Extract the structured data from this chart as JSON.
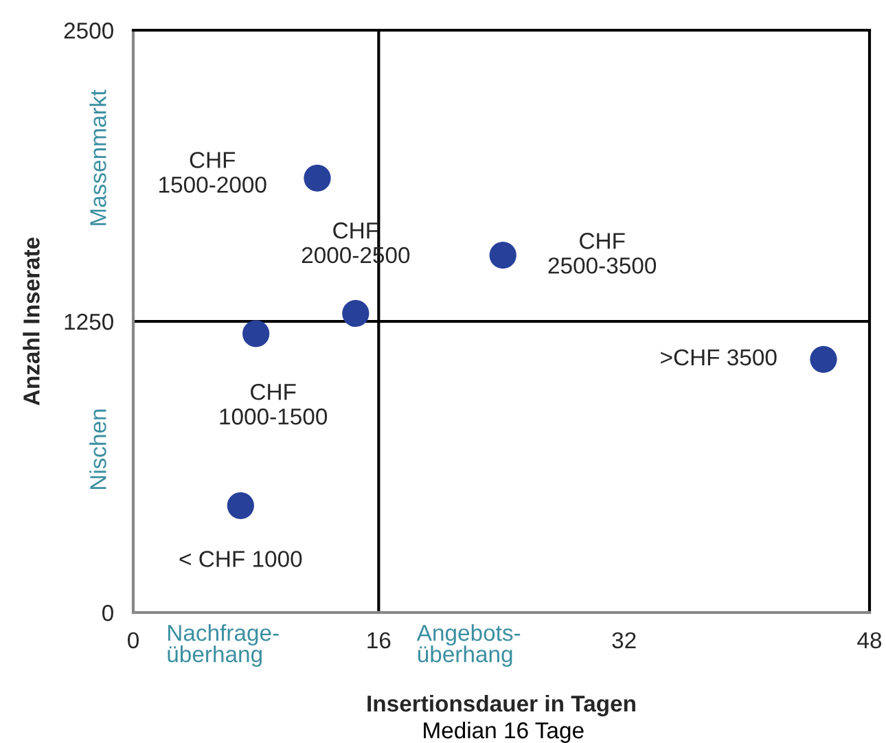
{
  "chart_data": {
    "type": "scatter",
    "xlabel": "Insertionsdauer in Tagen",
    "ylabel": "Anzahl Inserate",
    "series": [
      {
        "color": "#27409a",
        "x": [
          7.0,
          8.0,
          12.0,
          14.5,
          24.1,
          45.0
        ],
        "values": [
          459,
          1197,
          1865,
          1284,
          1534,
          1087
        ]
      }
    ],
    "xlim": [
      0,
      48
    ],
    "xticks": [
      0,
      16,
      32,
      48
    ],
    "ylim": [
      0,
      2500
    ],
    "yticks": [
      0,
      1250,
      2500
    ],
    "ref_lines": [
      {
        "axis": "x",
        "value": 16,
        "color": "#000000"
      },
      {
        "axis": "y",
        "value": 1250,
        "color": "#000000"
      }
    ],
    "annotations": [
      "< CHF 1000",
      "CHF\n1000-1500",
      "CHF\n1500-2000",
      "CHF\n2000-2500",
      "CHF\n2500-3500",
      ">CHF 3500",
      "Massenmarkt",
      "Nischen",
      "Nachfrage-\nüberhang",
      "Angebots-\nüberhang",
      "Median 16 Tage"
    ],
    "grid": false,
    "legend": false,
    "marker": "circle"
  }
}
